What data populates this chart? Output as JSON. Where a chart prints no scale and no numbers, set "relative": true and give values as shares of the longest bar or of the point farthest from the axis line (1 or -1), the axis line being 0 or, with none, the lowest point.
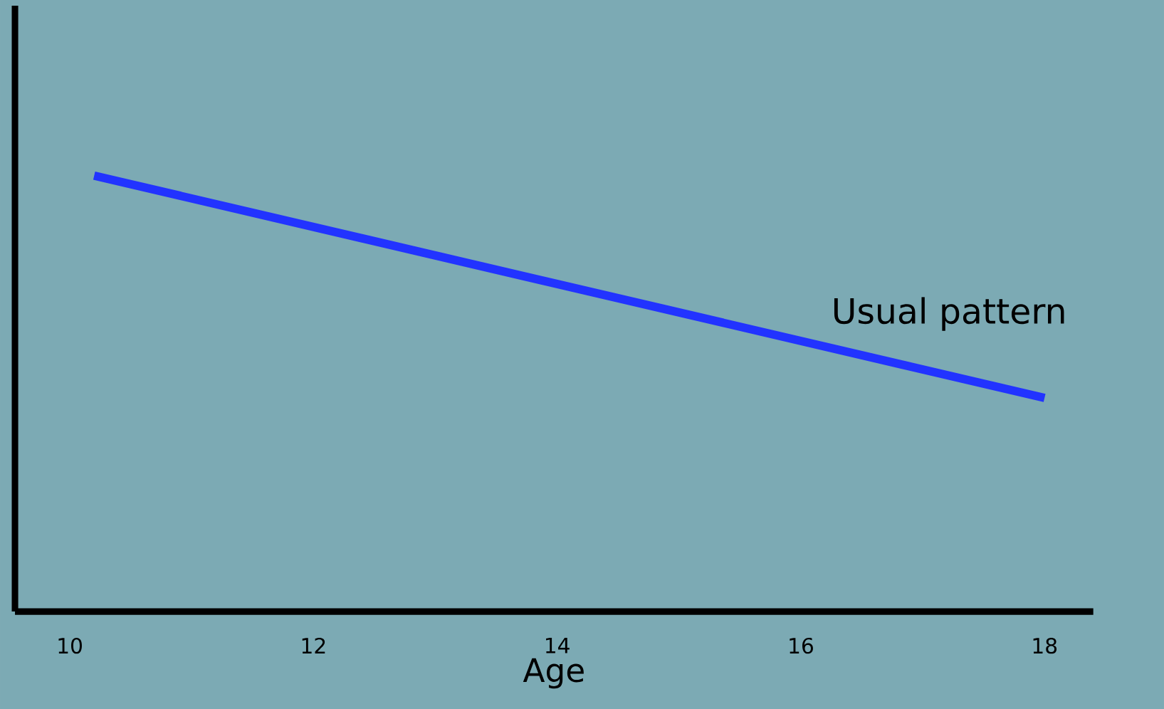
{
  "chart_data": {
    "type": "line",
    "relative": true,
    "xlabel": "Age",
    "x": [
      10.2,
      18
    ],
    "xlim": [
      9.55,
      18.4
    ],
    "xticks": [
      10,
      12,
      14,
      16,
      18
    ],
    "series": [
      {
        "name": "Usual pattern",
        "color": "#2233ff",
        "values": [
          1,
          0.49
        ]
      }
    ],
    "legend": false,
    "grid": false,
    "marker": "none",
    "line_style": "solid"
  }
}
